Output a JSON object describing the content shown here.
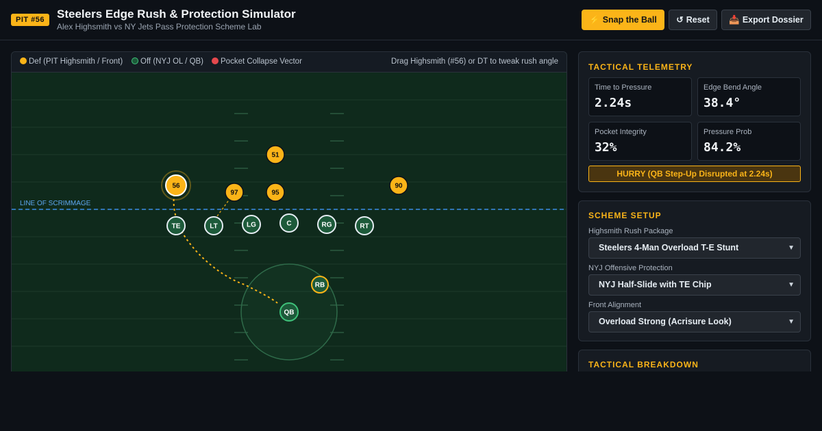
{
  "header": {
    "badge": "PIT #56",
    "title": "Steelers Edge Rush & Protection Simulator",
    "subtitle": "Alex Highsmith vs NY Jets Pass Protection Scheme Lab",
    "buttons": {
      "snap": {
        "icon": "⚡",
        "label": "Snap the Ball"
      },
      "reset": {
        "icon": "↺",
        "label": "Reset"
      },
      "export": {
        "icon": "📥",
        "label": "Export Dossier"
      }
    }
  },
  "field": {
    "legend": {
      "def": "Def (PIT Highsmith / Front)",
      "off": "Off (NYJ OL / QB)",
      "vector": "Pocket Collapse Vector"
    },
    "hint": "Drag Highsmith (#56) or DT to tweak rush angle",
    "los_label": "LINE OF SCRIMMAGE",
    "defense": [
      {
        "label": "56",
        "role": "highsmith"
      },
      {
        "label": "97",
        "role": "dl"
      },
      {
        "label": "95",
        "role": "dl"
      },
      {
        "label": "51",
        "role": "lb"
      },
      {
        "label": "90",
        "role": "dl"
      }
    ],
    "offense": [
      {
        "label": "TE"
      },
      {
        "label": "LT"
      },
      {
        "label": "LG"
      },
      {
        "label": "C"
      },
      {
        "label": "RG"
      },
      {
        "label": "RT"
      },
      {
        "label": "RB"
      },
      {
        "label": "QB"
      }
    ],
    "colors": {
      "defense": "#fbb418",
      "offense_fill": "#1d5a3a",
      "offense_stroke": "#e6edf3",
      "qb_stroke": "#3fc27a",
      "rb_stroke": "#fbb418",
      "vector": "#fbb418",
      "los": "#3b8ee8"
    }
  },
  "telemetry": {
    "title": "TACTICAL TELEMETRY",
    "metrics": [
      {
        "label": "Time to Pressure",
        "value": "2.24s"
      },
      {
        "label": "Edge Bend Angle",
        "value": "38.4°"
      },
      {
        "label": "Pocket Integrity",
        "value": "32%"
      },
      {
        "label": "Pressure Prob",
        "value": "84.2%"
      }
    ],
    "status": "HURRY (QB Step-Up Disrupted at 2.24s)"
  },
  "scheme": {
    "title": "SCHEME SETUP",
    "fields": [
      {
        "label": "Highsmith Rush Package",
        "value": "Steelers 4-Man Overload T-E Stunt"
      },
      {
        "label": "NYJ Offensive Protection",
        "value": "NYJ Half-Slide with TE Chip"
      },
      {
        "label": "Front Alignment",
        "value": "Overload Strong (Acrisure Look)"
      }
    ]
  },
  "breakdown": {
    "title": "TACTICAL BREAKDOWN"
  }
}
